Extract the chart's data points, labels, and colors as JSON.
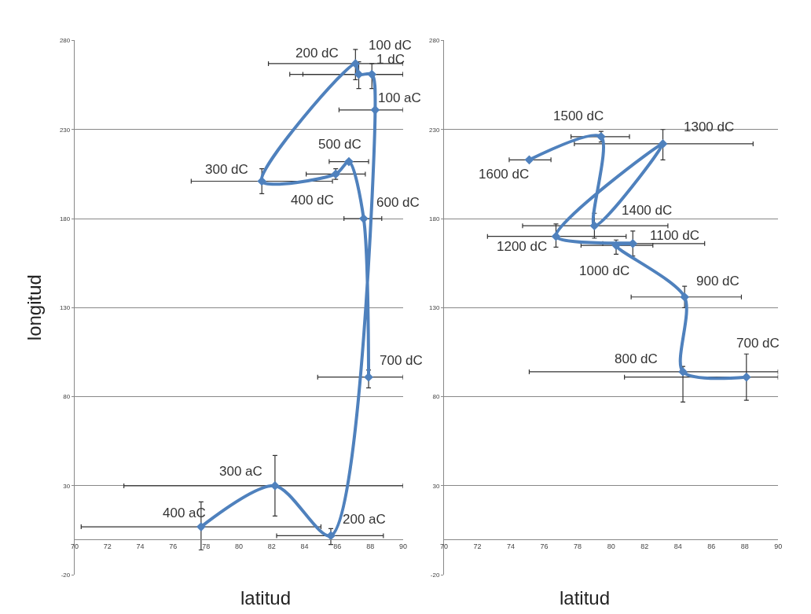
{
  "chart_data": [
    {
      "type": "line",
      "xlabel": "latitud",
      "ylabel": "longitud",
      "xlim": [
        70,
        90
      ],
      "xticks": [
        70,
        72,
        74,
        76,
        78,
        80,
        82,
        84,
        86,
        88,
        90
      ],
      "ylim": [
        -20,
        280
      ],
      "yticks": [
        -20,
        30,
        80,
        130,
        180,
        230,
        280
      ],
      "grid": "y",
      "marker": "diamond",
      "line_style": "solid",
      "series": [
        {
          "color": "#4f81bd",
          "x": [
            77.7,
            82.2,
            85.6,
            88.3,
            88.1,
            87.3,
            87.1,
            81.4,
            85.9,
            86.7,
            87.6,
            87.9
          ],
          "values": [
            7,
            30,
            2,
            241,
            261,
            261,
            267,
            201,
            205,
            212,
            180,
            91
          ],
          "xerrors": [
            [
              70.4,
              85.0
            ],
            [
              73.0,
              90
            ],
            [
              82.3,
              88.8
            ],
            [
              86.1,
              90
            ],
            [
              83.9,
              90
            ],
            [
              83.1,
              90
            ],
            [
              81.8,
              90
            ],
            [
              77.1,
              85.7
            ],
            [
              84.1,
              87.7
            ],
            [
              85.5,
              87.9
            ],
            [
              86.4,
              88.7
            ],
            [
              84.8,
              90
            ]
          ],
          "errors": [
            [
              -6,
              21
            ],
            [
              13,
              47
            ],
            [
              -3,
              6
            ],
            null,
            [
              253,
              267
            ],
            [
              253,
              268
            ],
            [
              258,
              275
            ],
            [
              194,
              208
            ],
            [
              202,
              208
            ],
            null,
            null,
            [
              85,
              95
            ]
          ]
        }
      ],
      "annotations": [
        {
          "text": "400 aC",
          "x": 77.7,
          "y": 7
        },
        {
          "text": "300 aC",
          "x": 82.2,
          "y": 30
        },
        {
          "text": "200 aC",
          "x": 85.6,
          "y": 2
        },
        {
          "text": "100 aC",
          "x": 88.3,
          "y": 241
        },
        {
          "text": "1 dC",
          "x": 88.1,
          "y": 261
        },
        {
          "text": "100 dC",
          "x": 87.3,
          "y": 261
        },
        {
          "text": "200 dC",
          "x": 87.1,
          "y": 267
        },
        {
          "text": "300 dC",
          "x": 81.4,
          "y": 201
        },
        {
          "text": "400 dC",
          "x": 85.9,
          "y": 205
        },
        {
          "text": "500 dC",
          "x": 86.7,
          "y": 212
        },
        {
          "text": "600 dC",
          "x": 87.6,
          "y": 180
        },
        {
          "text": "700 dC",
          "x": 87.9,
          "y": 91
        }
      ]
    },
    {
      "type": "line",
      "xlabel": "latitud",
      "xlim": [
        70,
        90
      ],
      "xticks": [
        70,
        72,
        74,
        76,
        78,
        80,
        82,
        84,
        86,
        88,
        90
      ],
      "ylim": [
        -20,
        280
      ],
      "yticks": [
        -20,
        30,
        80,
        130,
        180,
        230,
        280
      ],
      "grid": "y",
      "marker": "diamond",
      "line_style": "solid",
      "series": [
        {
          "color": "#4f81bd",
          "x": [
            88.1,
            84.3,
            84.4,
            80.3,
            81.3,
            76.7,
            83.1,
            79.0,
            79.4,
            75.1
          ],
          "values": [
            91,
            94,
            136,
            165,
            166,
            170,
            222,
            176,
            226,
            213
          ],
          "xerrors": [
            [
              80.8,
              90
            ],
            [
              75.1,
              90
            ],
            [
              81.2,
              87.8
            ],
            [
              78.2,
              82.5
            ],
            [
              79.5,
              85.6
            ],
            [
              72.6,
              80.9
            ],
            [
              77.8,
              88.5
            ],
            [
              74.7,
              83.4
            ],
            [
              77.6,
              81.1
            ],
            [
              73.9,
              76.4
            ]
          ],
          "errors": [
            [
              78,
              104
            ],
            [
              77,
              97
            ],
            [
              130,
              142
            ],
            [
              160,
              168
            ],
            [
              159,
              173
            ],
            [
              164,
              177
            ],
            [
              213,
              230
            ],
            [
              169,
              183
            ],
            [
              223,
              229
            ],
            null
          ]
        }
      ],
      "annotations": [
        {
          "text": "700 dC",
          "x": 88.1,
          "y": 91
        },
        {
          "text": "800 dC",
          "x": 84.3,
          "y": 94
        },
        {
          "text": "900 dC",
          "x": 84.4,
          "y": 136
        },
        {
          "text": "1000 dC",
          "x": 80.3,
          "y": 165
        },
        {
          "text": "1100 dC",
          "x": 81.3,
          "y": 166
        },
        {
          "text": "1200 dC",
          "x": 76.7,
          "y": 170
        },
        {
          "text": "1300 dC",
          "x": 83.1,
          "y": 222
        },
        {
          "text": "1400 dC",
          "x": 79.0,
          "y": 176
        },
        {
          "text": "1500 dC",
          "x": 79.4,
          "y": 226
        },
        {
          "text": "1600 dC",
          "x": 75.1,
          "y": 213
        }
      ]
    }
  ]
}
